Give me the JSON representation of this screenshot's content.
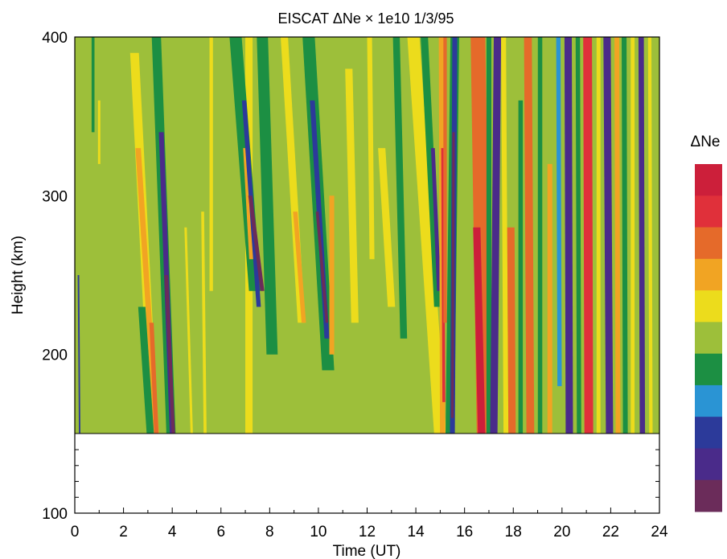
{
  "chart_data": {
    "type": "heatmap",
    "title": "EISCAT  ΔNe × 1e10  1/3/95",
    "xlabel": "Time (UT)",
    "ylabel": "Height (km)",
    "xlim": [
      0,
      24
    ],
    "ylim": [
      100,
      400
    ],
    "data_ylim": [
      150,
      400
    ],
    "x_ticks": [
      "0",
      "2",
      "4",
      "6",
      "8",
      "10",
      "12",
      "14",
      "16",
      "18",
      "20",
      "22",
      "24"
    ],
    "y_ticks": [
      "100",
      "200",
      "300",
      "400"
    ],
    "colorbar": {
      "label": "ΔNe",
      "colors": [
        "#cc1f3a",
        "#e0303a",
        "#e56a2a",
        "#f1a423",
        "#ecdc1c",
        "#9dbf3a",
        "#1c8f43",
        "#2a94d4",
        "#2c3a9a",
        "#4a2b8a",
        "#6b2c5a"
      ]
    },
    "band_order": [
      "-5",
      "-4",
      "-3",
      "-2",
      "-1",
      "0",
      "+1",
      "+2",
      "+3",
      "+4",
      "+5"
    ],
    "background_level": 0,
    "stripes": [
      {
        "t_top": 0.15,
        "t_bottom": 0.2,
        "w": 0.06,
        "level": -3,
        "h_top": 250,
        "h_bottom": 150
      },
      {
        "t_top": 0.75,
        "t_bottom": 0.75,
        "w": 0.12,
        "level": -1,
        "h_top": 400,
        "h_bottom": 340
      },
      {
        "t_top": 1.0,
        "t_bottom": 1.0,
        "w": 0.1,
        "level": 1,
        "h_top": 360,
        "h_bottom": 320
      },
      {
        "t_top": 2.45,
        "t_bottom": 3.25,
        "w": 0.36,
        "level": 1,
        "h_top": 390,
        "h_bottom": 150
      },
      {
        "t_top": 2.6,
        "t_bottom": 3.35,
        "w": 0.22,
        "level": 2,
        "h_top": 330,
        "h_bottom": 150
      },
      {
        "t_top": 3.15,
        "t_bottom": 3.35,
        "w": 0.18,
        "level": 3,
        "h_top": 220,
        "h_bottom": 150
      },
      {
        "t_top": 2.75,
        "t_bottom": 3.1,
        "w": 0.3,
        "level": -1,
        "h_top": 230,
        "h_bottom": 150
      },
      {
        "t_top": 3.35,
        "t_bottom": 3.95,
        "w": 0.38,
        "level": -1,
        "h_top": 400,
        "h_bottom": 150
      },
      {
        "t_top": 3.55,
        "t_bottom": 4.0,
        "w": 0.2,
        "level": -4,
        "h_top": 340,
        "h_bottom": 150
      },
      {
        "t_top": 3.75,
        "t_bottom": 4.05,
        "w": 0.14,
        "level": -5,
        "h_top": 250,
        "h_bottom": 150
      },
      {
        "t_top": 4.55,
        "t_bottom": 4.8,
        "w": 0.1,
        "level": 1,
        "h_top": 280,
        "h_bottom": 150
      },
      {
        "t_top": 5.25,
        "t_bottom": 5.35,
        "w": 0.12,
        "level": 1,
        "h_top": 290,
        "h_bottom": 150
      },
      {
        "t_top": 5.6,
        "t_bottom": 5.6,
        "w": 0.14,
        "level": 1,
        "h_top": 400,
        "h_bottom": 240
      },
      {
        "t_top": 7.15,
        "t_bottom": 7.15,
        "w": 0.3,
        "level": 1,
        "h_top": 400,
        "h_bottom": 150
      },
      {
        "t_top": 6.6,
        "t_bottom": 7.4,
        "w": 0.5,
        "level": -1,
        "h_top": 400,
        "h_bottom": 240
      },
      {
        "t_top": 7.0,
        "t_bottom": 7.25,
        "w": 0.18,
        "level": 2,
        "h_top": 330,
        "h_bottom": 260
      },
      {
        "t_top": 6.95,
        "t_bottom": 7.55,
        "w": 0.18,
        "level": -3,
        "h_top": 360,
        "h_bottom": 230
      },
      {
        "t_top": 7.2,
        "t_bottom": 7.7,
        "w": 0.16,
        "level": -5,
        "h_top": 300,
        "h_bottom": 240
      },
      {
        "t_top": 7.7,
        "t_bottom": 8.1,
        "w": 0.46,
        "level": -1,
        "h_top": 400,
        "h_bottom": 200
      },
      {
        "t_top": 8.6,
        "t_bottom": 9.3,
        "w": 0.3,
        "level": 1,
        "h_top": 400,
        "h_bottom": 220
      },
      {
        "t_top": 9.05,
        "t_bottom": 9.4,
        "w": 0.18,
        "level": 2,
        "h_top": 290,
        "h_bottom": 220
      },
      {
        "t_top": 9.6,
        "t_bottom": 10.4,
        "w": 0.5,
        "level": -1,
        "h_top": 400,
        "h_bottom": 190
      },
      {
        "t_top": 9.75,
        "t_bottom": 10.35,
        "w": 0.2,
        "level": -3,
        "h_top": 360,
        "h_bottom": 210
      },
      {
        "t_top": 9.95,
        "t_bottom": 10.35,
        "w": 0.12,
        "level": -5,
        "h_top": 290,
        "h_bottom": 220
      },
      {
        "t_top": 10.55,
        "t_bottom": 10.55,
        "w": 0.2,
        "level": 2,
        "h_top": 300,
        "h_bottom": 200
      },
      {
        "t_top": 11.25,
        "t_bottom": 11.5,
        "w": 0.3,
        "level": 1,
        "h_top": 380,
        "h_bottom": 220
      },
      {
        "t_top": 12.1,
        "t_bottom": 12.2,
        "w": 0.2,
        "level": 1,
        "h_top": 400,
        "h_bottom": 260
      },
      {
        "t_top": 12.6,
        "t_bottom": 13.0,
        "w": 0.3,
        "level": 1,
        "h_top": 330,
        "h_bottom": 230
      },
      {
        "t_top": 13.2,
        "t_bottom": 13.5,
        "w": 0.28,
        "level": -1,
        "h_top": 400,
        "h_bottom": 210
      },
      {
        "t_top": 13.9,
        "t_bottom": 15.0,
        "w": 0.5,
        "level": 1,
        "h_top": 400,
        "h_bottom": 150
      },
      {
        "t_top": 14.35,
        "t_bottom": 14.9,
        "w": 0.3,
        "level": -1,
        "h_top": 400,
        "h_bottom": 230
      },
      {
        "t_top": 14.7,
        "t_bottom": 14.95,
        "w": 0.16,
        "level": -4,
        "h_top": 330,
        "h_bottom": 240
      },
      {
        "t_top": 15.05,
        "t_bottom": 15.1,
        "w": 0.22,
        "level": 2,
        "h_top": 400,
        "h_bottom": 150
      },
      {
        "t_top": 15.1,
        "t_bottom": 15.15,
        "w": 0.12,
        "level": 4,
        "h_top": 330,
        "h_bottom": 170
      },
      {
        "t_top": 15.2,
        "t_bottom": 15.2,
        "w": 0.14,
        "level": 3,
        "h_top": 400,
        "h_bottom": 220
      },
      {
        "t_top": 15.6,
        "t_bottom": 15.4,
        "w": 0.36,
        "level": -1,
        "h_top": 400,
        "h_bottom": 150
      },
      {
        "t_top": 15.6,
        "t_bottom": 15.5,
        "w": 0.2,
        "level": -3,
        "h_top": 400,
        "h_bottom": 150
      },
      {
        "t_top": 15.55,
        "t_bottom": 15.5,
        "w": 0.1,
        "level": -5,
        "h_top": 340,
        "h_bottom": 160
      },
      {
        "t_top": 16.55,
        "t_bottom": 16.8,
        "w": 0.6,
        "level": 3,
        "h_top": 400,
        "h_bottom": 150
      },
      {
        "t_top": 16.5,
        "t_bottom": 16.7,
        "w": 0.3,
        "level": 5,
        "h_top": 280,
        "h_bottom": 150
      },
      {
        "t_top": 17.0,
        "t_bottom": 17.0,
        "w": 0.2,
        "level": -1,
        "h_top": 400,
        "h_bottom": 150
      },
      {
        "t_top": 17.35,
        "t_bottom": 17.2,
        "w": 0.3,
        "level": -4,
        "h_top": 400,
        "h_bottom": 150
      },
      {
        "t_top": 17.6,
        "t_bottom": 17.7,
        "w": 0.2,
        "level": 1,
        "h_top": 400,
        "h_bottom": 150
      },
      {
        "t_top": 17.9,
        "t_bottom": 17.95,
        "w": 0.3,
        "level": 3,
        "h_top": 280,
        "h_bottom": 150
      },
      {
        "t_top": 18.3,
        "t_bottom": 18.3,
        "w": 0.18,
        "level": -1,
        "h_top": 360,
        "h_bottom": 150
      },
      {
        "t_top": 18.6,
        "t_bottom": 18.7,
        "w": 0.32,
        "level": 3,
        "h_top": 400,
        "h_bottom": 150
      },
      {
        "t_top": 19.1,
        "t_bottom": 19.1,
        "w": 0.18,
        "level": -1,
        "h_top": 400,
        "h_bottom": 150
      },
      {
        "t_top": 19.5,
        "t_bottom": 19.5,
        "w": 0.2,
        "level": 2,
        "h_top": 320,
        "h_bottom": 150
      },
      {
        "t_top": 19.85,
        "t_bottom": 19.9,
        "w": 0.18,
        "level": -2,
        "h_top": 400,
        "h_bottom": 180
      },
      {
        "t_top": 20.25,
        "t_bottom": 20.3,
        "w": 0.3,
        "level": -4,
        "h_top": 400,
        "h_bottom": 150
      },
      {
        "t_top": 20.65,
        "t_bottom": 20.7,
        "w": 0.18,
        "level": -1,
        "h_top": 400,
        "h_bottom": 150
      },
      {
        "t_top": 21.05,
        "t_bottom": 21.1,
        "w": 0.36,
        "level": 4,
        "h_top": 400,
        "h_bottom": 150
      },
      {
        "t_top": 21.5,
        "t_bottom": 21.5,
        "w": 0.16,
        "level": 1,
        "h_top": 400,
        "h_bottom": 150
      },
      {
        "t_top": 21.85,
        "t_bottom": 21.95,
        "w": 0.3,
        "level": -4,
        "h_top": 400,
        "h_bottom": 150
      },
      {
        "t_top": 22.25,
        "t_bottom": 22.3,
        "w": 0.2,
        "level": 2,
        "h_top": 400,
        "h_bottom": 150
      },
      {
        "t_top": 22.55,
        "t_bottom": 22.6,
        "w": 0.2,
        "level": -1,
        "h_top": 400,
        "h_bottom": 150
      },
      {
        "t_top": 22.9,
        "t_bottom": 22.9,
        "w": 0.16,
        "level": 1,
        "h_top": 400,
        "h_bottom": 150
      },
      {
        "t_top": 23.25,
        "t_bottom": 23.3,
        "w": 0.22,
        "level": -4,
        "h_top": 400,
        "h_bottom": 150
      },
      {
        "t_top": 23.6,
        "t_bottom": 23.65,
        "w": 0.14,
        "level": 1,
        "h_top": 400,
        "h_bottom": 150
      }
    ]
  }
}
